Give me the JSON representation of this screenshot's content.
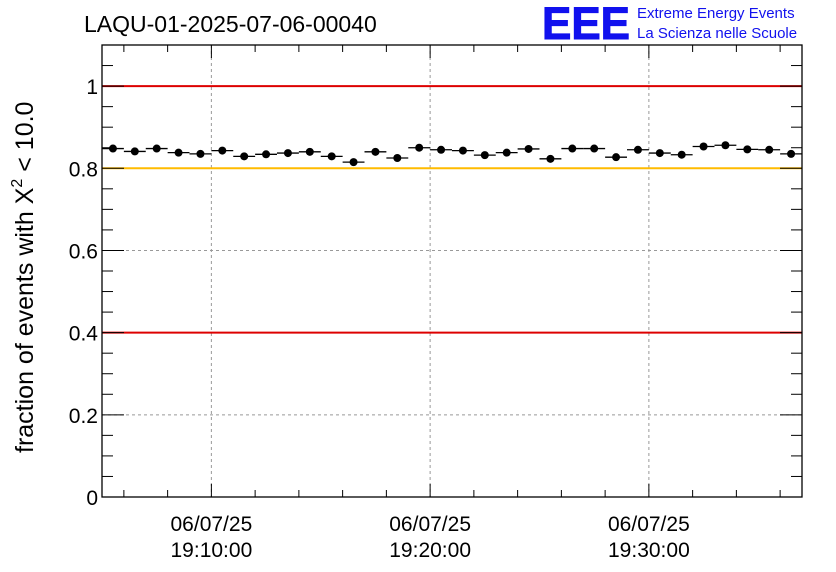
{
  "chart_data": {
    "type": "scatter",
    "title": "LAQU-01-2025-07-06-00040",
    "ylabel": "fraction of events with X² < 10.0",
    "ylabel_parts": {
      "prefix": "fraction of events with X",
      "sup": "2",
      "suffix": " < 10.0"
    },
    "xlabel": "",
    "ylim": [
      0,
      1.1
    ],
    "xlim_minutes": [
      19.0,
      51.0
    ],
    "y_ticks": [
      "0",
      "0.2",
      "0.4",
      "0.6",
      "0.8",
      "1"
    ],
    "x_ticks": [
      {
        "date": "06/07/25",
        "time": "19:10:00",
        "minute": 24.0
      },
      {
        "date": "06/07/25",
        "time": "19:20:00",
        "minute": 34.0
      },
      {
        "date": "06/07/25",
        "time": "19:30:00",
        "minute": 44.0
      }
    ],
    "grid": true,
    "reference_lines": [
      {
        "y": 1.0,
        "color": "#dd0000"
      },
      {
        "y": 0.8,
        "color": "#ffbb00"
      },
      {
        "y": 0.4,
        "color": "#dd0000"
      }
    ],
    "series": [
      {
        "marker_color": "#000000",
        "bin_width_minutes": 1.0,
        "x_minutes": [
          19.5,
          20.5,
          21.5,
          22.5,
          23.5,
          24.5,
          25.5,
          26.5,
          27.5,
          28.5,
          29.5,
          30.5,
          31.5,
          32.5,
          33.5,
          34.5,
          35.5,
          36.5,
          37.5,
          38.5,
          39.5,
          40.5,
          41.5,
          42.5,
          43.5,
          44.5,
          45.5,
          46.5,
          47.5,
          48.5,
          49.5,
          50.5
        ],
        "values": [
          0.848,
          0.841,
          0.848,
          0.838,
          0.835,
          0.843,
          0.829,
          0.834,
          0.837,
          0.84,
          0.829,
          0.815,
          0.84,
          0.825,
          0.85,
          0.845,
          0.843,
          0.832,
          0.838,
          0.847,
          0.823,
          0.848,
          0.848,
          0.827,
          0.845,
          0.837,
          0.833,
          0.853,
          0.856,
          0.846,
          0.845,
          0.835
        ]
      }
    ]
  },
  "logo": {
    "letters": "EEE",
    "line1": "Extreme Energy Events",
    "line2": "La Scienza nelle Scuole",
    "color": "#1111ee"
  }
}
